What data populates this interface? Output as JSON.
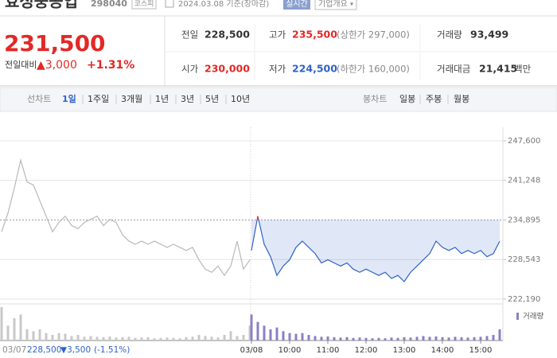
{
  "header": {
    "title": "효성중공업",
    "code": "298040",
    "market": "코스피",
    "date": "2024.03.08 기준(장마감)",
    "realtime": "실시간",
    "company_info": "기업개요"
  },
  "price": {
    "current": "231,500",
    "change_label": "전일대비",
    "change": "▲3,000",
    "rate": "+1.31%"
  },
  "summary": {
    "rows": [
      [
        {
          "label": "전일",
          "value": "228,500"
        },
        {
          "label": "고가",
          "value": "235,500",
          "note": "(상한가 297,000)"
        },
        {
          "label": "거래량",
          "value": "93,499"
        }
      ],
      [
        {
          "label": "시가",
          "value": "230,000"
        },
        {
          "label": "저가",
          "value": "224,500",
          "note": "(하한가 160,000)"
        },
        {
          "label": "거래대금",
          "value": "21,415",
          "unit": "백만"
        }
      ]
    ]
  },
  "tabs": {
    "line_label": "선차트",
    "line": [
      "1일",
      "1주일",
      "3개월",
      "1년",
      "3년",
      "5년",
      "10년"
    ],
    "candle_label": "봉차트",
    "candle": [
      "일봉",
      "주봉",
      "월봉"
    ]
  },
  "chart_data": {
    "type": "line",
    "categories": [
      null,
      null,
      null,
      null,
      null,
      null,
      null,
      null,
      null,
      null,
      null,
      null,
      null,
      null,
      null,
      null,
      null,
      null,
      null,
      null,
      null,
      null,
      null,
      null,
      null,
      null,
      null,
      null,
      null,
      null,
      null,
      null,
      null,
      null,
      null,
      null,
      null,
      null,
      null,
      null,
      "03/08",
      null,
      null,
      null,
      null,
      null,
      "10:00",
      null,
      null,
      null,
      null,
      null,
      "11:00",
      null,
      null,
      null,
      null,
      null,
      "12:00",
      null,
      null,
      null,
      null,
      null,
      "13:00",
      null,
      null,
      null,
      null,
      null,
      "14:00",
      null,
      null,
      null,
      null,
      null,
      "15:00",
      null,
      null,
      null
    ],
    "series": [
      {
        "color": "#b8b8b8",
        "values": [
          233000,
          236000,
          240000,
          244500,
          241000,
          240500,
          238000,
          235500,
          233000,
          234500,
          235500,
          234000,
          233500,
          234500,
          235000,
          235500,
          234000,
          235000,
          234500,
          232500,
          231500,
          231000,
          231500,
          231000,
          231500,
          231000,
          230500,
          231000,
          230500,
          230000,
          230500,
          228500,
          227000,
          226500,
          227500,
          226000,
          227500,
          231500,
          227000,
          228500,
          null,
          null,
          null,
          null,
          null,
          null,
          null,
          null,
          null,
          null,
          null,
          null,
          null,
          null,
          null,
          null,
          null,
          null,
          null,
          null,
          null,
          null,
          null,
          null,
          null,
          null,
          null,
          null,
          null,
          null,
          null,
          null,
          null,
          null,
          null,
          null,
          null,
          null,
          null,
          null
        ]
      },
      {
        "color": "#e22926",
        "down_color": "#2f62c8",
        "values": [
          null,
          null,
          null,
          null,
          null,
          null,
          null,
          null,
          null,
          null,
          null,
          null,
          null,
          null,
          null,
          null,
          null,
          null,
          null,
          null,
          null,
          null,
          null,
          null,
          null,
          null,
          null,
          null,
          null,
          null,
          null,
          null,
          null,
          null,
          null,
          null,
          null,
          null,
          null,
          null,
          230000,
          235500,
          231000,
          229000,
          226000,
          227500,
          228500,
          230500,
          231500,
          230500,
          229500,
          228000,
          228500,
          228000,
          227500,
          228000,
          227000,
          226500,
          227000,
          226500,
          226000,
          226500,
          225500,
          226000,
          225000,
          226500,
          227500,
          228500,
          229500,
          231500,
          230500,
          230000,
          230500,
          229500,
          230000,
          229500,
          230000,
          229000,
          229500,
          231500
        ]
      }
    ],
    "ylim": [
      222190,
      247600
    ],
    "yticks": [
      {
        "value": 247600,
        "label": "247,600"
      },
      {
        "value": 241248,
        "label": "241,248"
      },
      {
        "value": 234895,
        "label": "234,895"
      },
      {
        "value": 228543,
        "label": "228,543"
      },
      {
        "value": 222190,
        "label": "222,190"
      }
    ],
    "volume": {
      "name": "거래량",
      "color": "#8b80c4",
      "prev_color": "#c8c8c8",
      "ylim": [
        0,
        9000
      ],
      "values": [
        9000,
        4000,
        6000,
        7000,
        3000,
        2500,
        3000,
        2000,
        1500,
        2000,
        1800,
        1200,
        1500,
        1000,
        1200,
        1000,
        900,
        1100,
        800,
        900,
        1000,
        700,
        800,
        900,
        600,
        700,
        800,
        700,
        600,
        900,
        1000,
        1500,
        1200,
        1000,
        800,
        1500,
        2500,
        1200,
        1500,
        4000,
        7000,
        5000,
        4000,
        3000,
        3500,
        2500,
        2000,
        1800,
        2000,
        1500,
        1200,
        1000,
        1100,
        900,
        800,
        900,
        700,
        800,
        700,
        600,
        700,
        600,
        800,
        700,
        900,
        800,
        1000,
        1200,
        1000,
        1100,
        900,
        800,
        1000,
        900,
        800,
        900,
        1000,
        1200,
        1500,
        3000
      ]
    }
  },
  "hover": {
    "date": "03/07",
    "price": "228,500",
    "change": "▼3,500",
    "rate": "(-1.51%)"
  }
}
